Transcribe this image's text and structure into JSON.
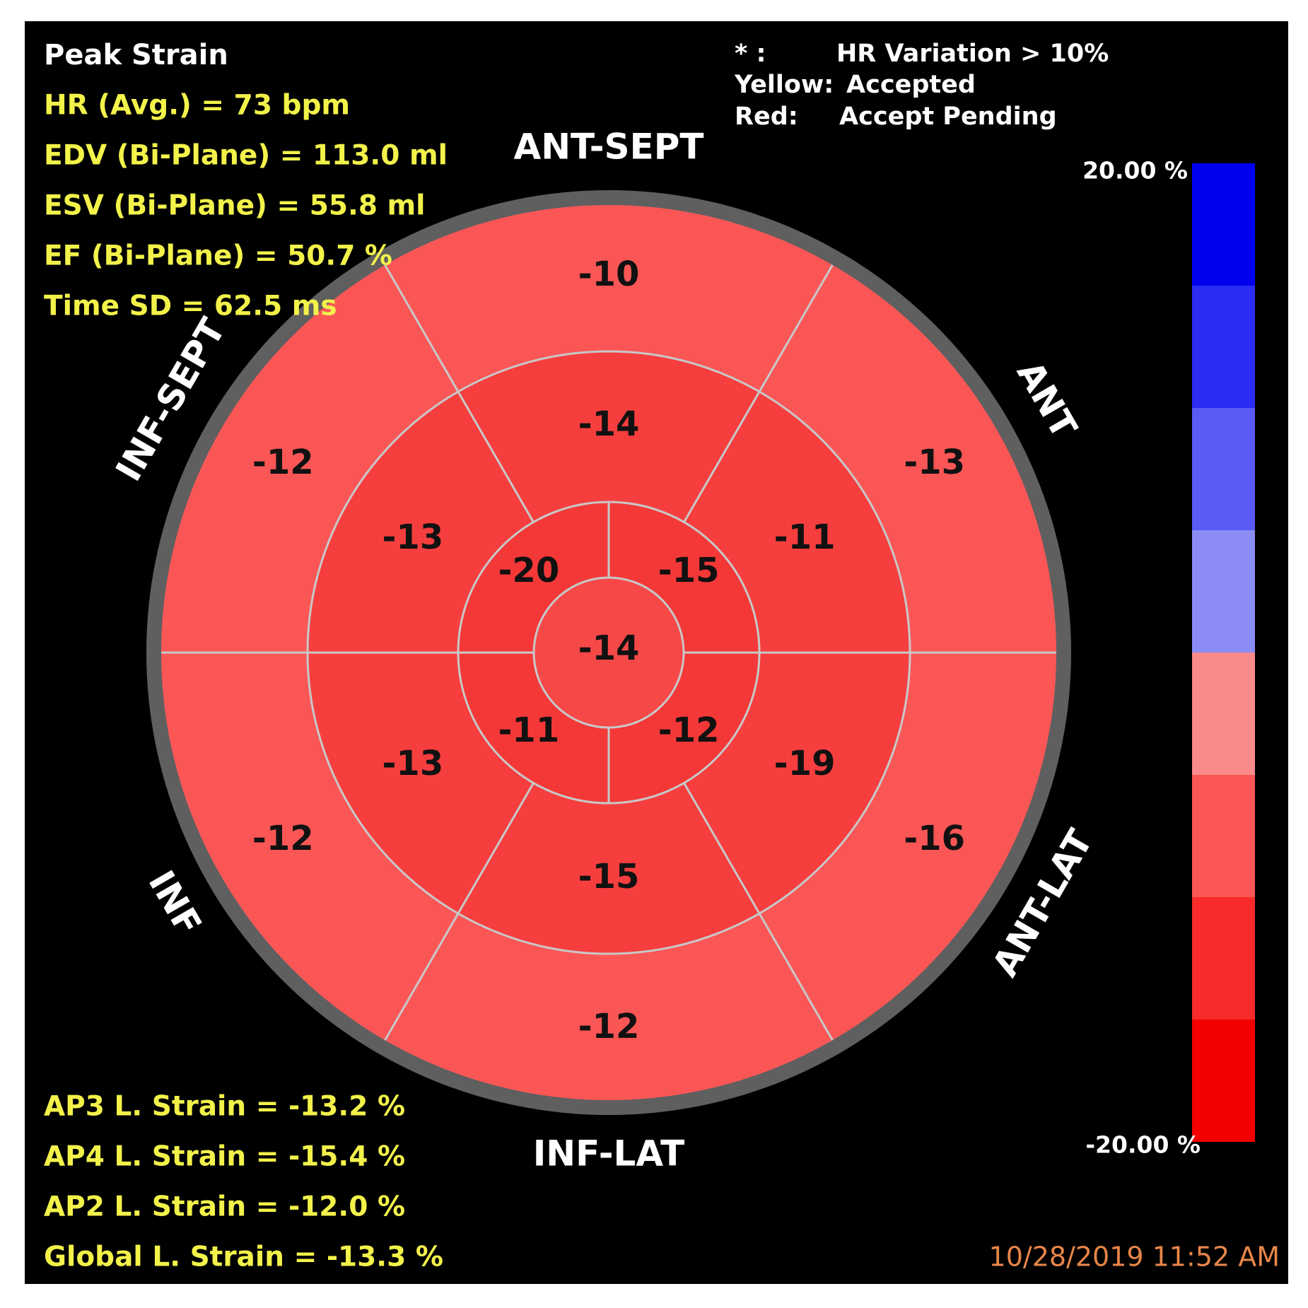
{
  "header": {
    "title": "Peak Strain",
    "lines": [
      "HR (Avg.) = 73 bpm",
      "EDV (Bi-Plane) = 113.0 ml",
      "ESV (Bi-Plane) = 55.8 ml",
      "EF (Bi-Plane) = 50.7 %",
      "Time SD = 62.5 ms"
    ]
  },
  "legend": [
    {
      "key": "* :",
      "text": "HR Variation > 10%"
    },
    {
      "key": "Yellow:",
      "text": "Accepted"
    },
    {
      "key": "Red:",
      "text": "Accept Pending"
    }
  ],
  "walls": [
    "ANT-SEPT",
    "ANT",
    "ANT-LAT",
    "INF-LAT",
    "INF",
    "INF-SEPT"
  ],
  "segments": {
    "basal": [
      -10,
      -13,
      -16,
      -12,
      -12,
      -12
    ],
    "mid": [
      -14,
      -11,
      -19,
      -15,
      -13,
      -13
    ],
    "apical": [
      -20,
      -15,
      -12,
      -11
    ],
    "apex": -14
  },
  "colorbar": {
    "max": "20.00 %",
    "min": "-20.00 %"
  },
  "footer": {
    "lines": [
      "AP3 L. Strain = -13.2 %",
      "AP4 L. Strain = -15.4 %",
      "AP2 L. Strain = -12.0 %",
      "Global L. Strain = -13.3 %"
    ],
    "timestamp": "10/28/2019 11:52 AM"
  }
}
